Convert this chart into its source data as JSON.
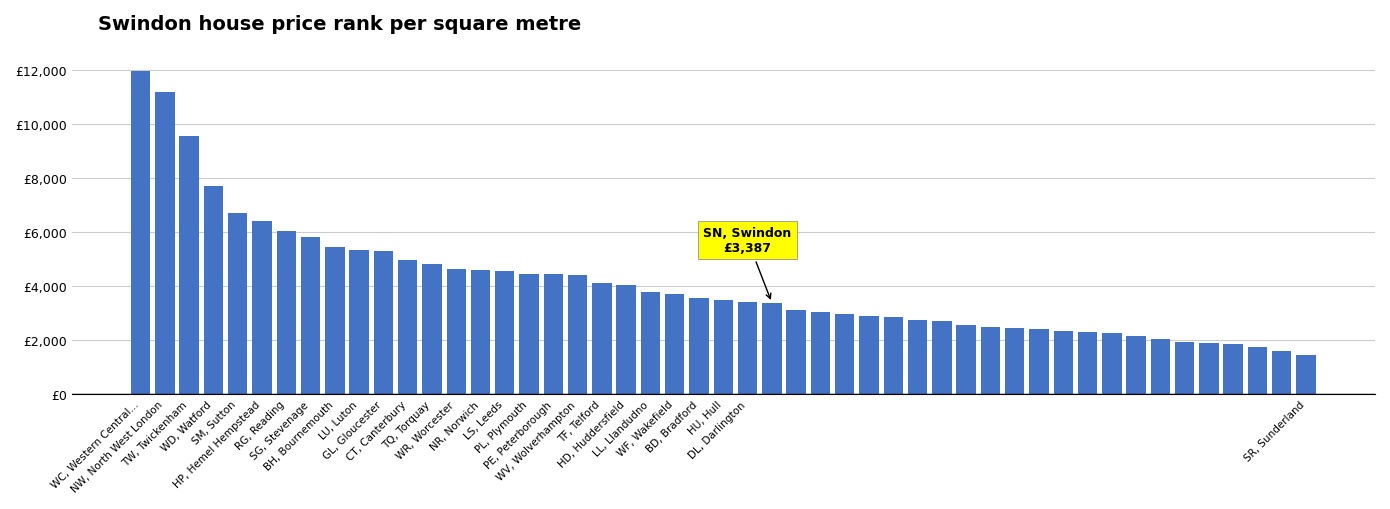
{
  "categories": [
    "WC, Western Central...",
    "NW, North West London",
    "TW, Twickenham",
    "WD, Watford",
    "SM, Sutton",
    "HP, Hemel Hempstead",
    "RG, Reading",
    "SG, Stevenage",
    "BH, Bournemouth",
    "LU, Luton",
    "GL, Gloucester",
    "CT, Canterbury",
    "TQ, Torquay",
    "WR, Worcester",
    "NR, Norwich",
    "LS, Leeds",
    "PL, Plymouth",
    "PE, Peterborough",
    "WV, Wolverhampton",
    "TF, Telford",
    "HD, Huddersfield",
    "LL, Llandudno",
    "WF, Wakefield",
    "BD, Bradford",
    "HU, Hull",
    "DL, Darlington",
    "SR, Sunderland"
  ],
  "values": [
    11950,
    11200,
    9550,
    7700,
    6700,
    6400,
    6050,
    5800,
    5450,
    5350,
    5300,
    4950,
    4800,
    4650,
    4600,
    4550,
    4450,
    4450,
    4400,
    4100,
    4050,
    3800,
    3700,
    3550,
    3500,
    3400,
    3387,
    3100,
    3050,
    2950,
    2900,
    2850,
    2750,
    2700,
    2550,
    2500,
    2450,
    2400,
    2350,
    2300,
    2250,
    2150,
    2050,
    1950,
    1900,
    1850,
    1750,
    1600,
    1450
  ],
  "highlight_index": 26,
  "highlight_label": "SN, Swindon\n£3,387",
  "bar_color": "#4472C4",
  "highlight_bar_color": "#4472C4",
  "annotation_bg_color": "#FFFF00",
  "background_color": "#FFFFFF",
  "title": "Swindon house price rank per square metre",
  "title_fontsize": 14,
  "ylabel": "",
  "ylim": [
    0,
    13000
  ],
  "yticks": [
    0,
    2000,
    4000,
    6000,
    8000,
    10000,
    12000
  ],
  "ytick_labels": [
    "£0",
    "£2,000",
    "£4,000",
    "£6,000",
    "£8,000",
    "£10,000",
    "£12,000"
  ],
  "grid_color": "#CCCCCC",
  "bar_width": 0.8,
  "xlabel_fontsize": 7.5,
  "ylabel_fontsize": 10
}
